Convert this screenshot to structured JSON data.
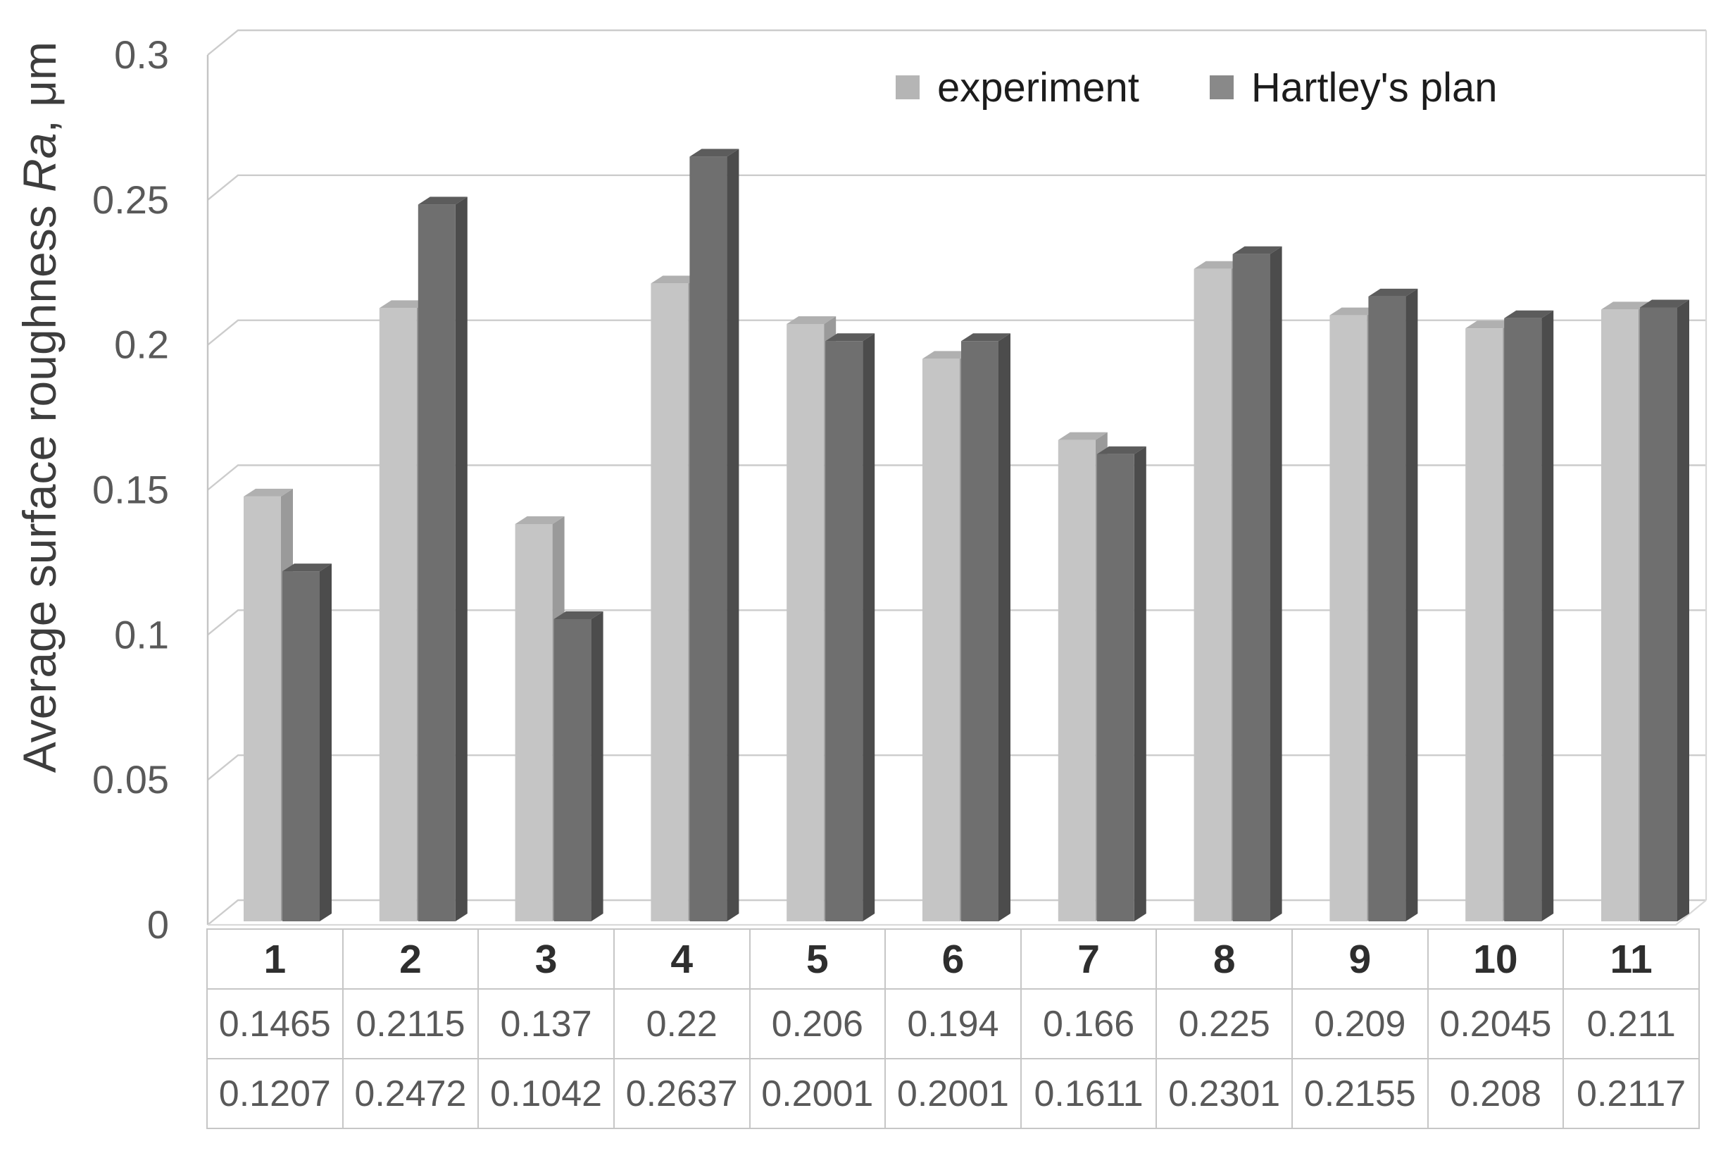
{
  "chart_data": {
    "type": "bar",
    "projection": "3d-column",
    "title": "",
    "categories": [
      "1",
      "2",
      "3",
      "4",
      "5",
      "6",
      "7",
      "8",
      "9",
      "10",
      "11"
    ],
    "series": [
      {
        "name": "experiment",
        "values": [
          0.1465,
          0.2115,
          0.137,
          0.22,
          0.206,
          0.194,
          0.166,
          0.225,
          0.209,
          0.2045,
          0.211
        ],
        "color_front": "#c5c5c5",
        "color_top": "#b0b0b0",
        "color_side": "#9a9a9a",
        "legend_color": "#b5b5b5"
      },
      {
        "name": "Hartley's plan",
        "values": [
          0.1207,
          0.2472,
          0.1042,
          0.2637,
          0.2001,
          0.2001,
          0.1611,
          0.2301,
          0.2155,
          0.208,
          0.2117
        ],
        "color_front": "#6f6f6f",
        "color_top": "#5c5c5c",
        "color_side": "#4c4c4c",
        "legend_color": "#898989"
      }
    ],
    "ylabel": {
      "prefix": "Average surface roughness ",
      "italic": "Ra",
      "suffix": ", μm"
    },
    "xlabel": "",
    "ylim": [
      0,
      0.3
    ],
    "yticks": [
      0,
      0.05,
      0.1,
      0.15,
      0.2,
      0.25,
      0.3
    ],
    "ytick_labels": [
      "0",
      "0.05",
      "0.1",
      "0.15",
      "0.2",
      "0.25",
      "0.3"
    ],
    "grid": true,
    "legend_position": "top-right",
    "data_table_shown": true,
    "colors": {
      "gridline": "#cccccc",
      "axis_line": "#c4c4c4",
      "wall_edge": "#d9d9d9",
      "tick_text": "#595959"
    }
  }
}
